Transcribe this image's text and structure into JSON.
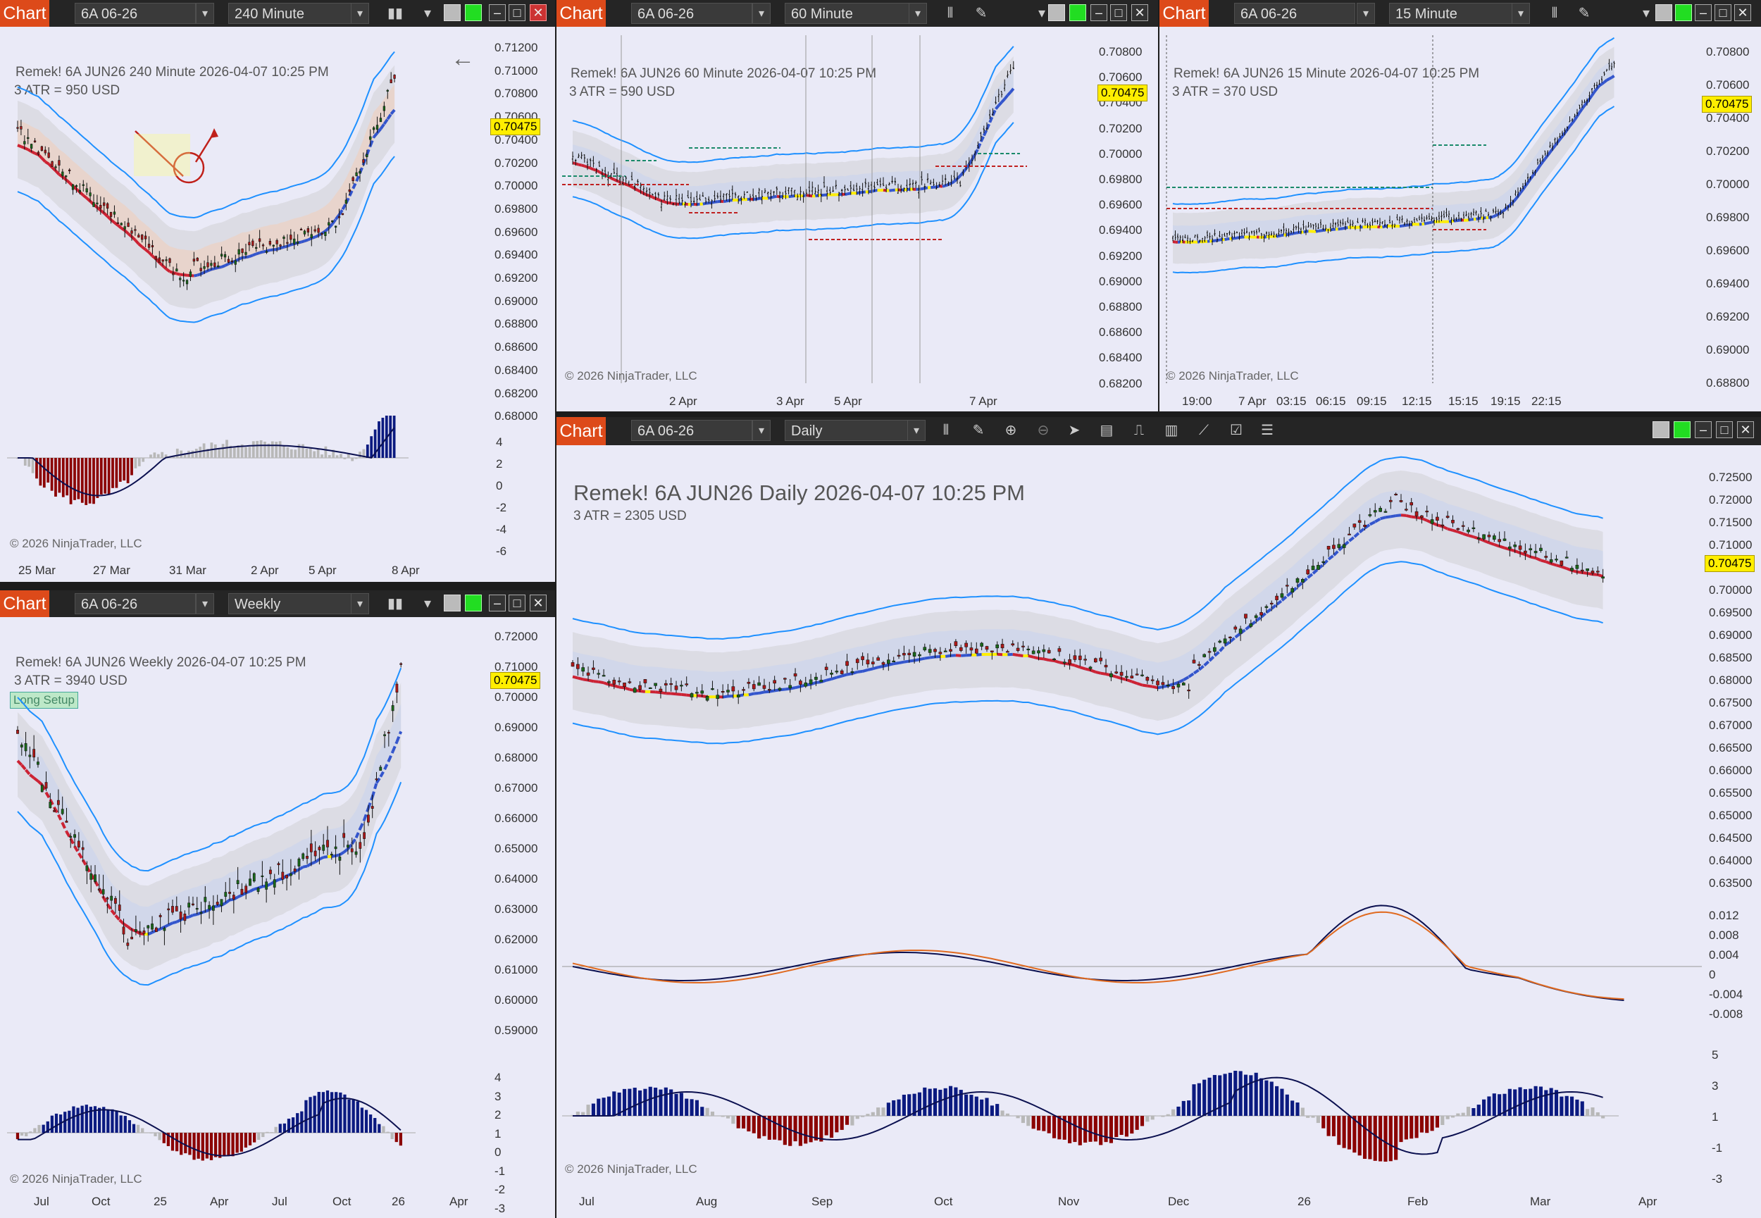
{
  "toolbar_common": {
    "chart_label": "Chart",
    "instrument": "6A 06-26",
    "dropdown": "⌄"
  },
  "windows": {
    "w240": {
      "period": "240 Minute",
      "header": "Remek!  6A JUN26  240 Minute  2026-04-07 10:25 PM",
      "atr": "3 ATR = 950 USD",
      "price_tag": "0.70475",
      "y_ticks": [
        "0.71200",
        "0.71000",
        "0.70800",
        "0.70600",
        "0.70400",
        "0.70200",
        "0.70000",
        "0.69800",
        "0.69600",
        "0.69400",
        "0.69200",
        "0.69000",
        "0.68800",
        "0.68600",
        "0.68400",
        "0.68200",
        "0.68000"
      ],
      "osc_ticks": [
        "4",
        "2",
        "0",
        "-2",
        "-4",
        "-6"
      ],
      "x_ticks": [
        "25 Mar",
        "27 Mar",
        "31 Mar",
        "2 Apr",
        "5 Apr",
        "8 Apr"
      ],
      "copyright": "© 2026 NinjaTrader, LLC"
    },
    "w60": {
      "period": "60 Minute",
      "header": "Remek!  6A JUN26  60 Minute  2026-04-07 10:25 PM",
      "atr": "3 ATR = 590 USD",
      "price_tag": "0.70475",
      "y_ticks": [
        "0.70800",
        "0.70600",
        "0.70400",
        "0.70200",
        "0.70000",
        "0.69800",
        "0.69600",
        "0.69400",
        "0.69200",
        "0.69000",
        "0.68800",
        "0.68600",
        "0.68400",
        "0.68200"
      ],
      "x_ticks": [
        "2 Apr",
        "3 Apr",
        "5 Apr",
        "7 Apr"
      ],
      "copyright": "© 2026 NinjaTrader, LLC"
    },
    "w15": {
      "period": "15 Minute",
      "header": "Remek!  6A JUN26  15 Minute  2026-04-07 10:25 PM",
      "atr": "3 ATR = 370 USD",
      "price_tag": "0.70475",
      "y_ticks": [
        "0.70800",
        "0.70600",
        "0.70400",
        "0.70200",
        "0.70000",
        "0.69800",
        "0.69600",
        "0.69400",
        "0.69200",
        "0.69000",
        "0.68800"
      ],
      "x_ticks": [
        "19:00",
        "7 Apr",
        "03:15",
        "06:15",
        "09:15",
        "12:15",
        "15:15",
        "19:15",
        "22:15"
      ],
      "copyright": "© 2026 NinjaTrader, LLC"
    },
    "wweek": {
      "period": "Weekly",
      "header": "Remek!  6A JUN26  Weekly  2026-04-07 10:25 PM",
      "atr": "3 ATR = 3940 USD",
      "price_tag": "0.70475",
      "setup": "Long Setup",
      "y_ticks": [
        "0.72000",
        "0.71000",
        "0.70000",
        "0.69000",
        "0.68000",
        "0.67000",
        "0.66000",
        "0.65000",
        "0.64000",
        "0.63000",
        "0.62000",
        "0.61000",
        "0.60000",
        "0.59000"
      ],
      "osc_ticks": [
        "4",
        "3",
        "2",
        "1",
        "0",
        "-1",
        "-2",
        "-3"
      ],
      "x_ticks": [
        "Jul",
        "Oct",
        "25",
        "Apr",
        "Jul",
        "Oct",
        "26",
        "Apr"
      ],
      "copyright": "© 2026 NinjaTrader, LLC"
    },
    "wday": {
      "period": "Daily",
      "header": "Remek!  6A JUN26  Daily  2026-04-07 10:25 PM",
      "atr": "3 ATR = 2305 USD",
      "price_tag": "0.70475",
      "y_ticks": [
        "0.72500",
        "0.72000",
        "0.71500",
        "0.71000",
        "0.70500",
        "0.70000",
        "0.69500",
        "0.69000",
        "0.68500",
        "0.68000",
        "0.67500",
        "0.67000",
        "0.66500",
        "0.66000",
        "0.65500",
        "0.65000",
        "0.64500",
        "0.64000",
        "0.63500"
      ],
      "macd_ticks": [
        "0.012",
        "0.008",
        "0.004",
        "0",
        "-0.004",
        "-0.008"
      ],
      "osc_ticks": [
        "5",
        "3",
        "1",
        "-1",
        "-3"
      ],
      "x_ticks": [
        "Jul",
        "Aug",
        "Sep",
        "Oct",
        "Nov",
        "Dec",
        "26",
        "Feb",
        "Mar",
        "Apr"
      ],
      "copyright": "© 2026 NinjaTrader, LLC"
    }
  },
  "colors": {
    "up": "#1a6b1a",
    "down": "#b01818",
    "band": "#1e90ff",
    "ema_down": "#cc2233",
    "ema_up": "#3355cc",
    "neutral": "#ffee00",
    "hist_down": "#8b0000",
    "hist_up": "#0b1a80",
    "hist_neutral": "#b8b8b8",
    "window_bg": "#eaeaf7"
  }
}
